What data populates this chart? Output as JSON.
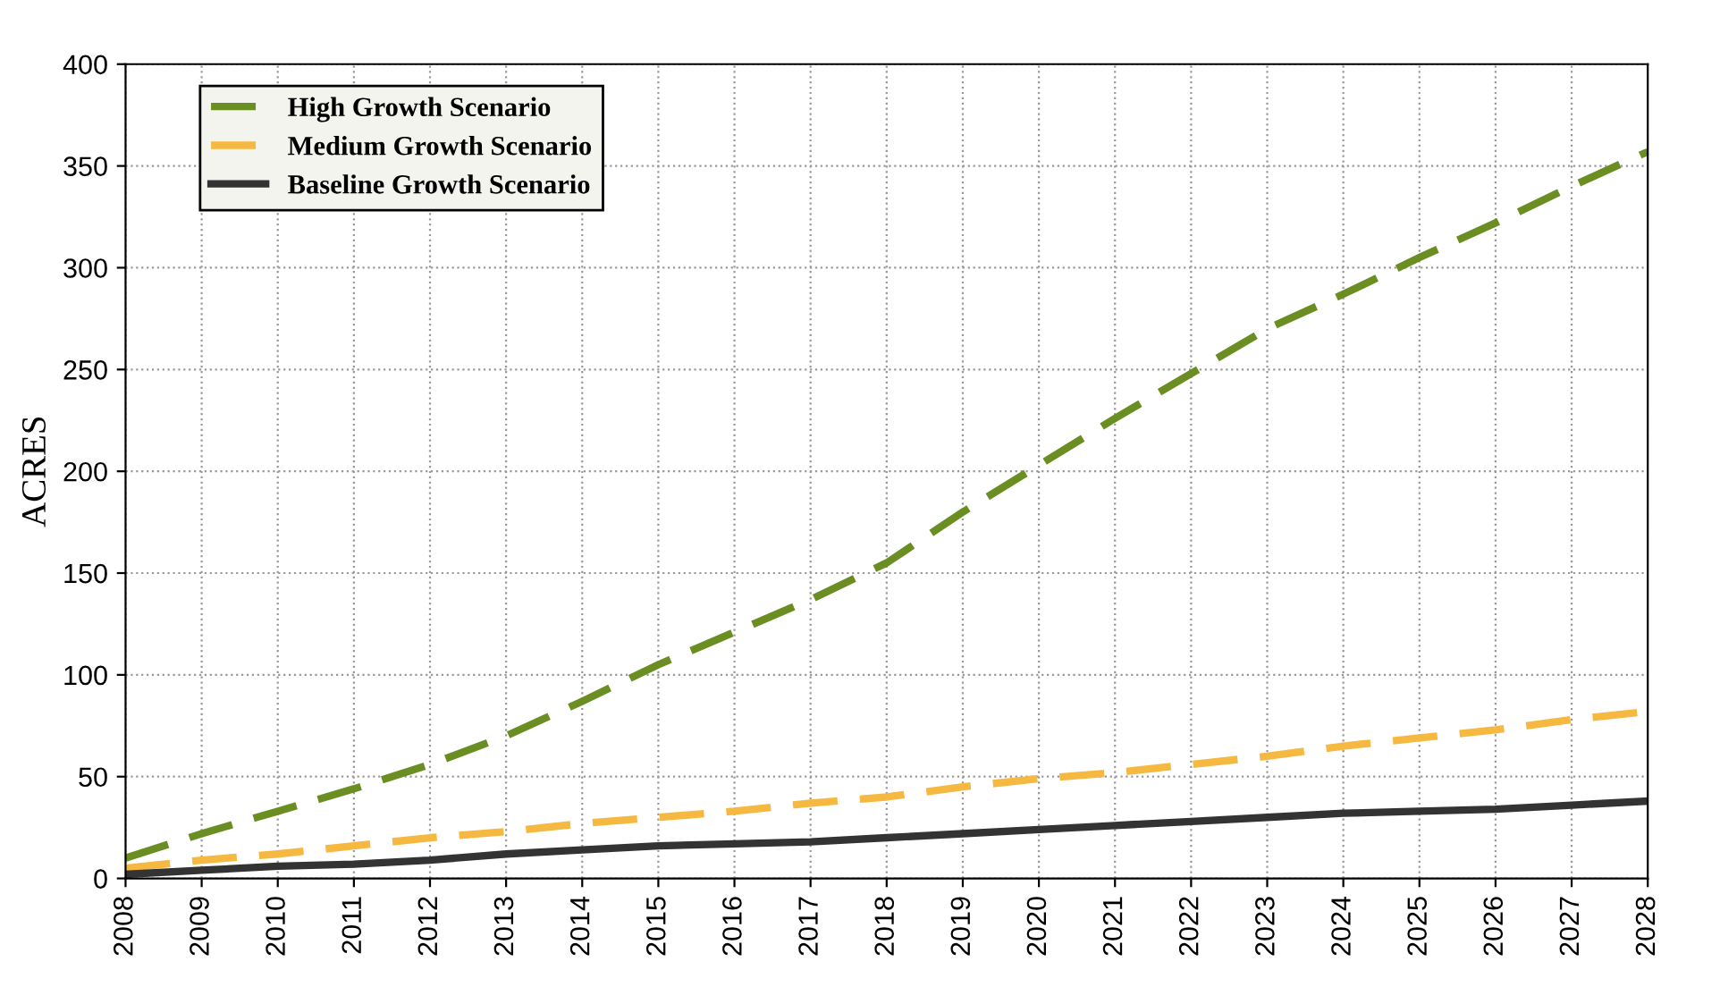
{
  "chart_data": {
    "type": "line",
    "ylabel": "ACRES",
    "categories": [
      "2008",
      "2009",
      "2010",
      "2011",
      "2012",
      "2013",
      "2014",
      "2015",
      "2016",
      "2017",
      "2018",
      "2019",
      "2020",
      "2021",
      "2022",
      "2023",
      "2024",
      "2025",
      "2026",
      "2027",
      "2028"
    ],
    "ylim": [
      0,
      400
    ],
    "yticks": [
      0,
      50,
      100,
      150,
      200,
      250,
      300,
      350,
      400
    ],
    "grid": true,
    "legend": "top left",
    "marker": "none",
    "series": [
      {
        "name": "High Growth Scenario",
        "color": "#6b8e23",
        "line_style": "dashed",
        "values": [
          10,
          22,
          33,
          44,
          56,
          70,
          87,
          105,
          121,
          137,
          155,
          180,
          203,
          226,
          248,
          270,
          287,
          305,
          322,
          340,
          357
        ]
      },
      {
        "name": "Medium Growth Scenario",
        "color": "#f5b942",
        "line_style": "dashed",
        "values": [
          5,
          9,
          12,
          16,
          20,
          23,
          27,
          30,
          33,
          37,
          40,
          45,
          49,
          52,
          56,
          60,
          65,
          69,
          73,
          78,
          82
        ]
      },
      {
        "name": "Baseline Growth Scenario",
        "color": "#333333",
        "line_style": "solid",
        "values": [
          2,
          4,
          6,
          7,
          9,
          12,
          14,
          16,
          17,
          18,
          20,
          22,
          24,
          26,
          28,
          30,
          32,
          33,
          34,
          36,
          38
        ]
      }
    ]
  }
}
